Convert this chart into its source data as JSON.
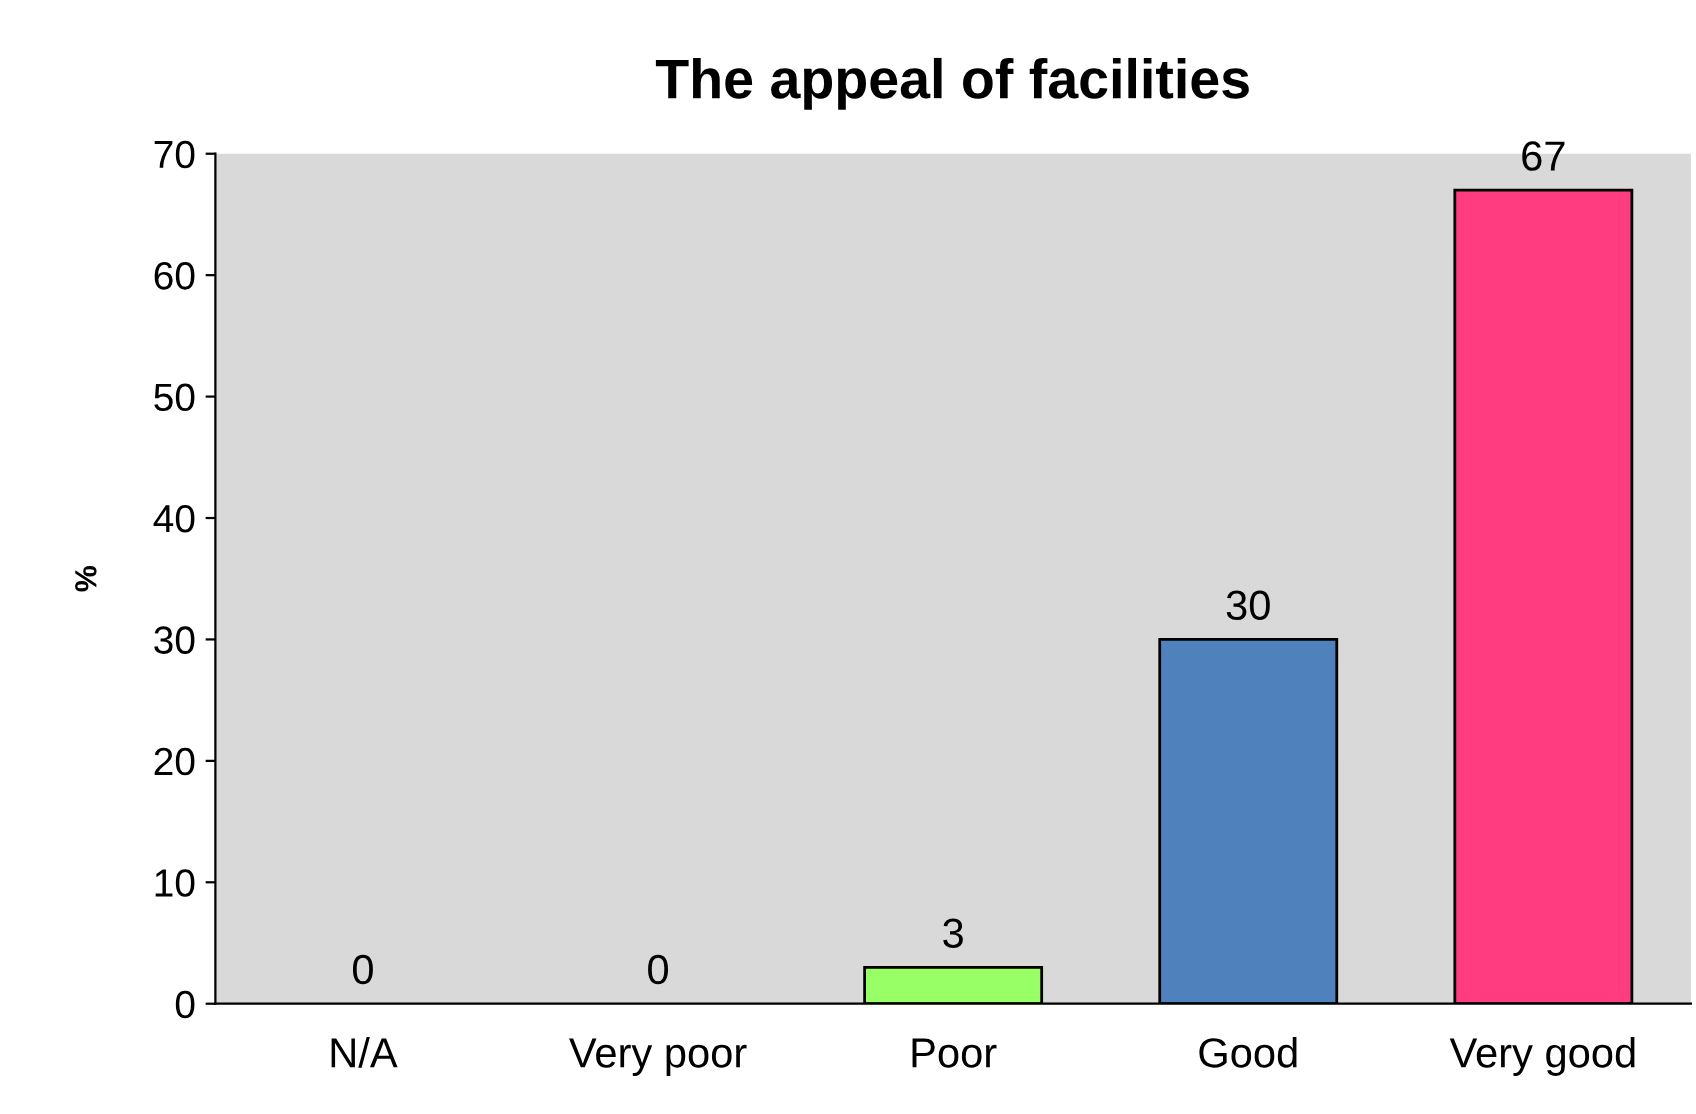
{
  "chart_data": {
    "type": "bar",
    "title": "The appeal of facilities",
    "ylabel": "%",
    "categories": [
      "N/A",
      "Very poor",
      "Poor",
      "Good",
      "Very good"
    ],
    "values": [
      0,
      0,
      3,
      30,
      67
    ],
    "colors": [
      null,
      null,
      "#99ff66",
      "#4f81bd",
      "#ff3c7f"
    ],
    "ylim": [
      0,
      70
    ],
    "yticks": [
      0,
      10,
      20,
      30,
      40,
      50,
      60,
      70
    ],
    "data_labels": true,
    "grid": false,
    "legend": false
  }
}
